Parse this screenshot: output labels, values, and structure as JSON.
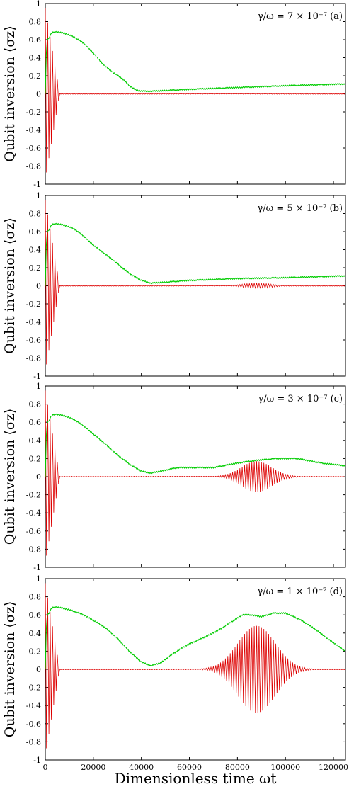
{
  "chart_data": [
    {
      "type": "line",
      "annotation": "γ/ω = 7 × 10⁻⁷ (a)",
      "ylabel": "Qubit inversion ⟨σz⟩",
      "xlabel": "",
      "xlim": [
        0,
        125000
      ],
      "ylim": [
        -1,
        1
      ],
      "yticks": [
        "1",
        "0.8",
        "0.6",
        "0.4",
        "0.2",
        "0",
        "-0.2",
        "-0.4",
        "-0.6",
        "-0.8",
        "-1"
      ],
      "xticks": [],
      "colors": {
        "green": "#00cc00",
        "red": "#dd0000"
      },
      "series": [
        {
          "color": "green",
          "x": [
            0,
            500,
            1000,
            1500,
            2000,
            3000,
            4500,
            8000,
            12000,
            16000,
            20000,
            24000,
            28000,
            32000,
            35000,
            38000,
            40000,
            45000,
            60000,
            80000,
            100000,
            125000
          ],
          "y": [
            0.0,
            0.55,
            0.62,
            0.6,
            0.65,
            0.68,
            0.69,
            0.67,
            0.63,
            0.56,
            0.45,
            0.33,
            0.24,
            0.17,
            0.09,
            0.04,
            0.03,
            0.03,
            0.05,
            0.07,
            0.09,
            0.11
          ]
        },
        {
          "color": "red",
          "x": [
            0,
            5000,
            125000
          ],
          "y": [
            0.0,
            0.0,
            0.0
          ],
          "oscillation": {
            "amplitude": 0.95,
            "decay_until": 6000
          }
        }
      ]
    },
    {
      "type": "line",
      "annotation": "γ/ω = 5 × 10⁻⁷ (b)",
      "ylabel": "Qubit inversion ⟨σz⟩",
      "xlabel": "",
      "xlim": [
        0,
        125000
      ],
      "ylim": [
        -1,
        1
      ],
      "yticks": [
        "1",
        "0.8",
        "0.6",
        "0.4",
        "0.2",
        "0",
        "-0.2",
        "-0.4",
        "-0.6",
        "-0.8",
        "-1"
      ],
      "xticks": [],
      "colors": {
        "green": "#00cc00",
        "red": "#dd0000"
      },
      "series": [
        {
          "color": "green",
          "x": [
            0,
            500,
            1000,
            1500,
            2000,
            3000,
            4500,
            8000,
            12000,
            16000,
            20000,
            24000,
            28000,
            32000,
            36000,
            40000,
            44000,
            50000,
            60000,
            80000,
            100000,
            125000
          ],
          "y": [
            0.0,
            0.55,
            0.62,
            0.6,
            0.65,
            0.68,
            0.69,
            0.67,
            0.63,
            0.55,
            0.45,
            0.37,
            0.29,
            0.2,
            0.12,
            0.06,
            0.03,
            0.04,
            0.06,
            0.08,
            0.09,
            0.11
          ]
        },
        {
          "color": "red",
          "x": [
            0,
            125000
          ],
          "y": [
            0.0,
            0.0
          ],
          "oscillation": {
            "amplitude": 0.95,
            "decay_until": 6000,
            "revival_center": 88000,
            "revival_amplitude": 0.03,
            "revival_width": 8000
          }
        }
      ]
    },
    {
      "type": "line",
      "annotation": "γ/ω = 3 × 10⁻⁷ (c)",
      "ylabel": "Qubit inversion ⟨σz⟩",
      "xlabel": "",
      "xlim": [
        0,
        125000
      ],
      "ylim": [
        -1,
        1
      ],
      "yticks": [
        "1",
        "0.8",
        "0.6",
        "0.4",
        "0.2",
        "0",
        "-0.2",
        "-0.4",
        "-0.6",
        "-0.8",
        "-1"
      ],
      "xticks": [],
      "colors": {
        "green": "#00cc00",
        "red": "#dd0000"
      },
      "series": [
        {
          "color": "green",
          "x": [
            0,
            500,
            1000,
            1500,
            2000,
            3000,
            4500,
            8000,
            12000,
            16000,
            20000,
            25000,
            30000,
            35000,
            40000,
            44000,
            48000,
            55000,
            60000,
            70000,
            80000,
            88000,
            96000,
            105000,
            115000,
            125000
          ],
          "y": [
            0.0,
            0.55,
            0.62,
            0.6,
            0.65,
            0.68,
            0.69,
            0.67,
            0.63,
            0.56,
            0.47,
            0.36,
            0.24,
            0.14,
            0.06,
            0.04,
            0.06,
            0.1,
            0.1,
            0.1,
            0.15,
            0.18,
            0.2,
            0.2,
            0.15,
            0.12
          ]
        },
        {
          "color": "red",
          "x": [
            0,
            125000
          ],
          "y": [
            0.0,
            0.0
          ],
          "oscillation": {
            "amplitude": 0.95,
            "decay_until": 6000,
            "revival_center": 88000,
            "revival_amplitude": 0.17,
            "revival_width": 9000
          }
        }
      ]
    },
    {
      "type": "line",
      "annotation": "γ/ω = 1 × 10⁻⁷ (d)",
      "ylabel": "Qubit inversion ⟨σz⟩",
      "xlabel": "Dimensionless time ωt",
      "xlim": [
        0,
        125000
      ],
      "ylim": [
        -1,
        1
      ],
      "yticks": [
        "1",
        "0.8",
        "0.6",
        "0.4",
        "0.2",
        "0",
        "-0.2",
        "-0.4",
        "-0.6",
        "-0.8",
        "-1"
      ],
      "xticks": [
        "0",
        "20000",
        "40000",
        "60000",
        "80000",
        "100000",
        "120000"
      ],
      "colors": {
        "green": "#00cc00",
        "red": "#dd0000"
      },
      "series": [
        {
          "color": "green",
          "x": [
            0,
            500,
            1000,
            1500,
            2000,
            3000,
            4500,
            8000,
            12000,
            16000,
            20000,
            25000,
            30000,
            35000,
            40000,
            44000,
            48000,
            52000,
            56000,
            60000,
            66000,
            72000,
            78000,
            82000,
            86000,
            90000,
            95000,
            100000,
            106000,
            112000,
            118000,
            125000
          ],
          "y": [
            0.0,
            0.55,
            0.62,
            0.6,
            0.65,
            0.68,
            0.69,
            0.67,
            0.64,
            0.6,
            0.54,
            0.46,
            0.34,
            0.2,
            0.08,
            0.04,
            0.07,
            0.15,
            0.22,
            0.28,
            0.35,
            0.43,
            0.53,
            0.6,
            0.6,
            0.58,
            0.62,
            0.62,
            0.55,
            0.45,
            0.33,
            0.2
          ]
        },
        {
          "color": "red",
          "x": [
            0,
            125000
          ],
          "y": [
            0.0,
            0.0
          ],
          "oscillation": {
            "amplitude": 0.95,
            "decay_until": 6000,
            "revival_center": 88000,
            "revival_amplitude": 0.48,
            "revival_width": 11000
          }
        }
      ]
    }
  ]
}
